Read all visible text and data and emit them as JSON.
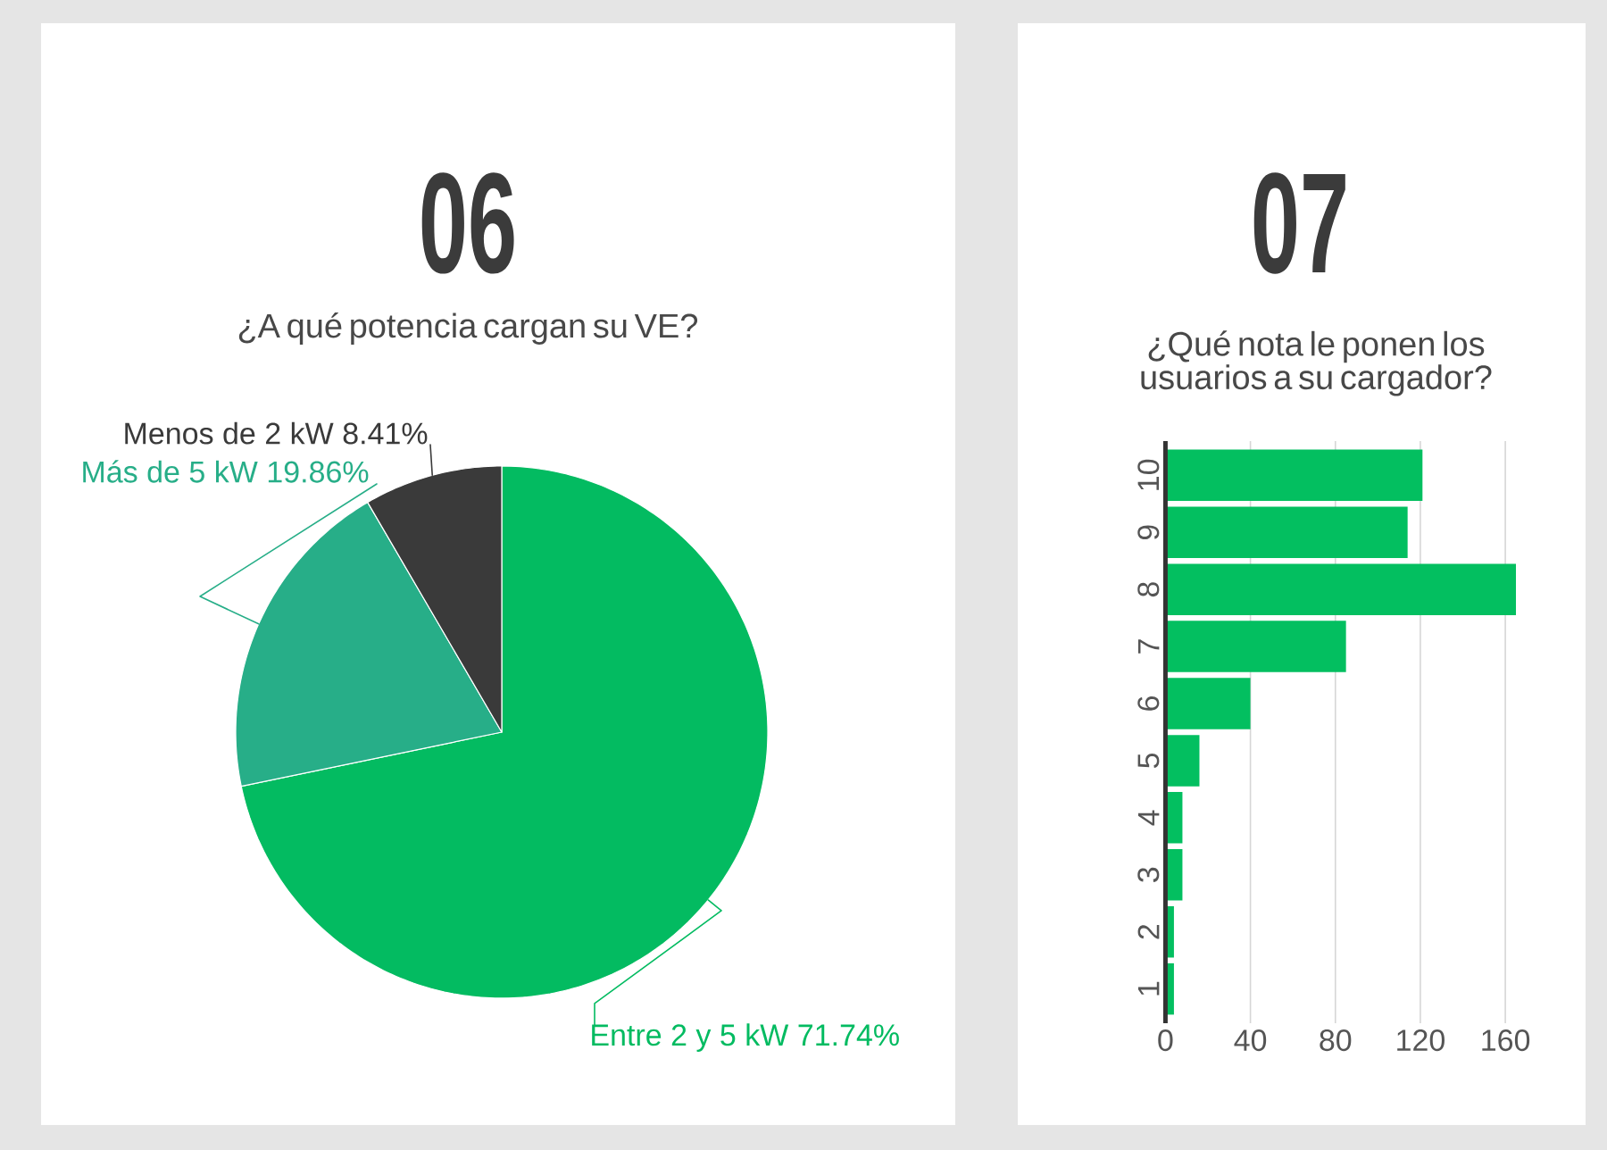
{
  "chart_data": [
    {
      "type": "pie",
      "title": "06",
      "subtitle": "¿A qué potencia cargan su VE?",
      "categories": [
        "Entre 2 y 5 kW",
        "Más de 5 kW",
        "Menos de 2 kW"
      ],
      "values": [
        71.74,
        19.86,
        8.41
      ],
      "value_labels": [
        "71.74%",
        "19.86%",
        "8.41%"
      ],
      "colors": [
        "#03bb61",
        "#27ae88",
        "#3a3a3a"
      ]
    },
    {
      "type": "bar",
      "orientation": "horizontal",
      "title": "07",
      "subtitle": "¿Qué nota le ponen los usuarios a su cargador?",
      "categories": [
        "10",
        "9",
        "8",
        "7",
        "6",
        "5",
        "4",
        "3",
        "2",
        "1"
      ],
      "values": [
        121,
        114,
        165,
        85,
        40,
        16,
        8,
        8,
        4,
        4
      ],
      "color": "#03bf60",
      "xlim": [
        0,
        165
      ],
      "xticks": [
        0,
        40,
        80,
        120,
        160
      ],
      "grid": "x"
    }
  ]
}
